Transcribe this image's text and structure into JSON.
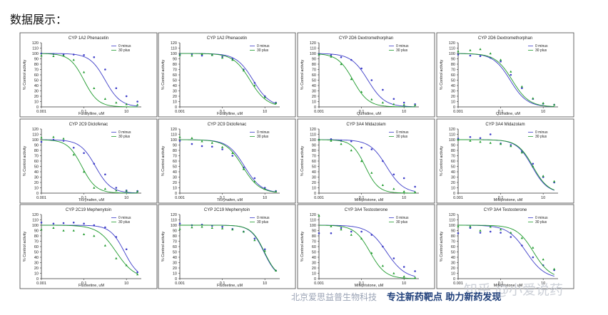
{
  "heading": "数据展示：",
  "footer": {
    "company": "北京爱思益普生物科技",
    "slogan": "专注新药靶点 助力新药发现"
  },
  "watermark": "知乎 @小爱说药",
  "colors": {
    "series_0min": "#3d3dc8",
    "series_30min": "#1e9a2c"
  },
  "chart_data": [
    {
      "type": "line",
      "title": "CYP 1A2 Phenacetin",
      "xlabel": "Furafylline, uM",
      "ylabel": "% Control activity",
      "xscale": "log",
      "xlim": [
        0.001,
        50
      ],
      "ylim": [
        0,
        120
      ],
      "xticks": [
        "0.001",
        "0.1",
        "10"
      ],
      "yticks": [
        "0",
        "10",
        "20",
        "30",
        "40",
        "50",
        "60",
        "70",
        "80",
        "90",
        "100",
        "110",
        "120"
      ],
      "legend": [
        "0 minus",
        "30 plus"
      ],
      "series": [
        {
          "name": "0 minus",
          "ic50": 1.0,
          "hill": 1.2,
          "x": [
            0.001,
            0.0037,
            0.011,
            0.033,
            0.1,
            0.3,
            1,
            3.3,
            10,
            33
          ],
          "y": [
            100,
            99,
            98,
            98,
            97,
            93,
            70,
            35,
            20,
            10
          ]
        },
        {
          "name": "30 plus",
          "ic50": 0.1,
          "hill": 1.3,
          "x": [
            0.001,
            0.0037,
            0.011,
            0.033,
            0.1,
            0.3,
            1,
            3.3,
            10,
            33
          ],
          "y": [
            96,
            95,
            96,
            88,
            65,
            35,
            15,
            8,
            5,
            4
          ]
        }
      ]
    },
    {
      "type": "line",
      "title": "CYP 1A2 Phenacetin",
      "xlabel": "Furafylline, uM",
      "ylabel": "% Control activity",
      "xscale": "log",
      "xlim": [
        0.001,
        50
      ],
      "ylim": [
        0,
        120
      ],
      "xticks": [
        "0.001",
        "0.1",
        "10"
      ],
      "yticks": [
        "0",
        "10",
        "20",
        "30",
        "40",
        "50",
        "60",
        "70",
        "80",
        "90",
        "100",
        "110",
        "120"
      ],
      "legend": [
        "0 minus",
        "30 plus"
      ],
      "series": [
        {
          "name": "0 minus",
          "ic50": 2.8,
          "hill": 1.1,
          "x": [
            0.001,
            0.0037,
            0.011,
            0.033,
            0.1,
            0.3,
            1,
            3.3,
            10,
            33
          ],
          "y": [
            98,
            99,
            96,
            97,
            94,
            90,
            70,
            45,
            20,
            8
          ]
        },
        {
          "name": "30 plus",
          "ic50": 2.0,
          "hill": 1.1,
          "x": [
            0.001,
            0.0037,
            0.011,
            0.033,
            0.1,
            0.3,
            1,
            3.3,
            10,
            33
          ],
          "y": [
            97,
            96,
            99,
            97,
            92,
            88,
            68,
            40,
            18,
            7
          ]
        }
      ]
    },
    {
      "type": "line",
      "title": "CYP 2D6 Dextromethorphan",
      "xlabel": "Quinidine, uM",
      "ylabel": "% Control activity",
      "xscale": "log",
      "xlim": [
        0.001,
        50
      ],
      "ylim": [
        0,
        120
      ],
      "xticks": [
        "0.001",
        "0.1",
        "10"
      ],
      "yticks": [
        "0",
        "10",
        "20",
        "30",
        "40",
        "50",
        "60",
        "70",
        "80",
        "90",
        "100",
        "110",
        "120"
      ],
      "legend": [
        "0 minus",
        "30 plus"
      ],
      "series": [
        {
          "name": "0 minus",
          "ic50": 0.2,
          "hill": 1.1,
          "x": [
            0.001,
            0.0037,
            0.011,
            0.033,
            0.1,
            0.3,
            1,
            3.3,
            10,
            33
          ],
          "y": [
            99,
            97,
            93,
            88,
            72,
            50,
            32,
            15,
            8,
            5
          ]
        },
        {
          "name": "30 plus",
          "ic50": 0.04,
          "hill": 1.2,
          "x": [
            0.001,
            0.0037,
            0.011,
            0.033,
            0.1,
            0.3,
            1,
            3.3,
            10,
            33
          ],
          "y": [
            98,
            94,
            80,
            52,
            28,
            14,
            8,
            5,
            4,
            3
          ]
        }
      ]
    },
    {
      "type": "line",
      "title": "CYP 2D6 Dextromethorphan",
      "xlabel": "Quinidine, uM",
      "ylabel": "% Control activity",
      "xscale": "log",
      "xlim": [
        0.001,
        50
      ],
      "ylim": [
        0,
        120
      ],
      "xticks": [
        "0.001",
        "0.1",
        "10"
      ],
      "yticks": [
        "0",
        "10",
        "20",
        "30",
        "40",
        "50",
        "60",
        "70",
        "80",
        "90",
        "100",
        "110",
        "120"
      ],
      "legend": [
        "0 minus",
        "30 plus"
      ],
      "series": [
        {
          "name": "0 minus",
          "ic50": 0.28,
          "hill": 1.1,
          "x": [
            0.001,
            0.0037,
            0.011,
            0.033,
            0.1,
            0.3,
            1,
            3.3,
            10,
            33
          ],
          "y": [
            98,
            96,
            95,
            92,
            85,
            60,
            35,
            15,
            6,
            4
          ]
        },
        {
          "name": "30 plus",
          "ic50": 0.35,
          "hill": 1.1,
          "x": [
            0.001,
            0.0037,
            0.011,
            0.033,
            0.1,
            0.3,
            1,
            3.3,
            10,
            33
          ],
          "y": [
            104,
            106,
            108,
            100,
            88,
            66,
            38,
            16,
            7,
            4
          ]
        }
      ]
    },
    {
      "type": "line",
      "title": "CYP 2C9 Diclofenac",
      "xlabel": "Ticrynafen, uM",
      "ylabel": "% Control activity",
      "xscale": "log",
      "xlim": [
        0.001,
        50
      ],
      "ylim": [
        0,
        120
      ],
      "xticks": [
        "0.001",
        "0.1",
        "10"
      ],
      "yticks": [
        "0",
        "10",
        "20",
        "30",
        "40",
        "50",
        "60",
        "70",
        "80",
        "90",
        "100",
        "110",
        "120"
      ],
      "legend": [
        "0 minus",
        "30 plus"
      ],
      "series": [
        {
          "name": "0 minus",
          "ic50": 0.35,
          "hill": 1.2,
          "x": [
            0.001,
            0.0037,
            0.011,
            0.033,
            0.1,
            0.3,
            1,
            3.3,
            10,
            33
          ],
          "y": [
            96,
            100,
            98,
            85,
            75,
            55,
            35,
            10,
            5,
            4
          ]
        },
        {
          "name": "30 plus",
          "ic50": 0.08,
          "hill": 1.3,
          "x": [
            0.001,
            0.0037,
            0.011,
            0.033,
            0.1,
            0.3,
            1,
            3.3,
            10,
            33
          ],
          "y": [
            104,
            105,
            102,
            72,
            40,
            10,
            8,
            5,
            4,
            3
          ]
        }
      ]
    },
    {
      "type": "line",
      "title": "CYP 2C9 Diclofenac",
      "xlabel": "Ticrynafen, uM",
      "ylabel": "% Control activity",
      "xscale": "log",
      "xlim": [
        0.001,
        50
      ],
      "ylim": [
        0,
        120
      ],
      "xticks": [
        "0.001",
        "0.1",
        "10"
      ],
      "yticks": [
        "0",
        "10",
        "20",
        "30",
        "40",
        "50",
        "60",
        "70",
        "80",
        "90",
        "100",
        "110",
        "120"
      ],
      "legend": [
        "0 minus",
        "30 plus"
      ],
      "series": [
        {
          "name": "0 minus",
          "ic50": 1.1,
          "hill": 1.1,
          "x": [
            0.001,
            0.0037,
            0.011,
            0.033,
            0.1,
            0.3,
            1,
            3.3,
            10,
            33
          ],
          "y": [
            98,
            92,
            88,
            87,
            82,
            70,
            48,
            28,
            10,
            4
          ]
        },
        {
          "name": "30 plus",
          "ic50": 0.9,
          "hill": 1.1,
          "x": [
            0.001,
            0.0037,
            0.011,
            0.033,
            0.1,
            0.3,
            1,
            3.3,
            10,
            33
          ],
          "y": [
            105,
            103,
            97,
            94,
            86,
            75,
            45,
            22,
            8,
            3
          ]
        }
      ]
    },
    {
      "type": "line",
      "title": "CYP 3A4 Midazolam",
      "xlabel": "Mifepristone, uM",
      "ylabel": "% Control activity",
      "xscale": "log",
      "xlim": [
        0.001,
        50
      ],
      "ylim": [
        0,
        120
      ],
      "xticks": [
        "0.001",
        "0.1",
        "10"
      ],
      "yticks": [
        "0",
        "10",
        "20",
        "30",
        "40",
        "50",
        "60",
        "70",
        "80",
        "90",
        "100",
        "110",
        "120"
      ],
      "legend": [
        "0 minus",
        "30 plus"
      ],
      "series": [
        {
          "name": "0 minus",
          "ic50": 1.5,
          "hill": 1.1,
          "x": [
            0.001,
            0.0037,
            0.011,
            0.033,
            0.1,
            0.3,
            1,
            3.3,
            10,
            33
          ],
          "y": [
            100,
            101,
            98,
            97,
            85,
            82,
            60,
            35,
            28,
            12
          ]
        },
        {
          "name": "30 plus",
          "ic50": 0.15,
          "hill": 1.4,
          "x": [
            0.001,
            0.0037,
            0.011,
            0.033,
            0.1,
            0.3,
            1,
            3.3,
            10,
            33
          ],
          "y": [
            100,
            98,
            92,
            80,
            60,
            38,
            15,
            8,
            3,
            2
          ]
        }
      ]
    },
    {
      "type": "line",
      "title": "CYP 3A4 Midazolam",
      "xlabel": "Mifepristone, uM",
      "ylabel": "% Control activity",
      "xscale": "log",
      "xlim": [
        0.001,
        50
      ],
      "ylim": [
        0,
        120
      ],
      "xticks": [
        "0.001",
        "0.1",
        "10"
      ],
      "yticks": [
        "0",
        "10",
        "20",
        "30",
        "40",
        "50",
        "60",
        "70",
        "80",
        "90",
        "100",
        "110",
        "120"
      ],
      "legend": [
        "0 minus",
        "30 plus"
      ],
      "series": [
        {
          "name": "0 minus",
          "ic50": 3.0,
          "hill": 1.2,
          "x": [
            0.001,
            0.0037,
            0.011,
            0.033,
            0.1,
            0.3,
            1,
            3.3,
            10,
            33
          ],
          "y": [
            102,
            105,
            103,
            110,
            93,
            90,
            78,
            55,
            30,
            20
          ]
        },
        {
          "name": "30 plus",
          "ic50": 3.3,
          "hill": 1.2,
          "x": [
            0.001,
            0.0037,
            0.011,
            0.033,
            0.1,
            0.3,
            1,
            3.3,
            10,
            33
          ],
          "y": [
            100,
            98,
            96,
            94,
            92,
            88,
            76,
            50,
            32,
            22
          ]
        }
      ]
    },
    {
      "type": "line",
      "title": "CYP 2C19 Mephenytoin",
      "xlabel": "Fluoxetine, uM",
      "ylabel": "% Control activity",
      "xscale": "log",
      "xlim": [
        0.001,
        50
      ],
      "ylim": [
        0,
        120
      ],
      "xticks": [
        "0.001",
        "0.1",
        "10"
      ],
      "yticks": [
        "0",
        "10",
        "20",
        "30",
        "40",
        "50",
        "60",
        "70",
        "80",
        "90",
        "100",
        "110",
        "120"
      ],
      "legend": [
        "0 minus",
        "30 plus"
      ],
      "series": [
        {
          "name": "0 minus",
          "ic50": 8.0,
          "hill": 1.3,
          "x": [
            0.001,
            0.0037,
            0.011,
            0.033,
            0.1,
            0.3,
            1,
            3.3,
            10,
            33
          ],
          "y": [
            105,
            103,
            104,
            105,
            103,
            100,
            96,
            78,
            55,
            12
          ]
        },
        {
          "name": "30 plus",
          "ic50": 3.3,
          "hill": 1.0,
          "x": [
            0.001,
            0.0037,
            0.011,
            0.033,
            0.1,
            0.3,
            1,
            3.3,
            10,
            33
          ],
          "y": [
            92,
            95,
            90,
            90,
            83,
            80,
            62,
            38,
            25,
            8
          ]
        }
      ]
    },
    {
      "type": "line",
      "title": "CYP 2C19 Mephenytoin",
      "xlabel": "Fluoxetine, uM",
      "ylabel": "% Control activity",
      "xscale": "log",
      "xlim": [
        0.001,
        50
      ],
      "ylim": [
        0,
        120
      ],
      "xticks": [
        "0.001",
        "0.1",
        "10"
      ],
      "yticks": [
        "0",
        "10",
        "20",
        "30",
        "40",
        "50",
        "60",
        "70",
        "80",
        "90",
        "100",
        "110",
        "120"
      ],
      "legend": [
        "0 minus",
        "30 plus"
      ],
      "series": [
        {
          "name": "0 minus",
          "ic50": 9.0,
          "hill": 1.4,
          "x": [
            0.001,
            0.0037,
            0.011,
            0.033,
            0.1,
            0.3,
            1,
            3.3,
            10,
            33
          ],
          "y": [
            103,
            100,
            101,
            99,
            97,
            93,
            88,
            75,
            55,
            15
          ]
        },
        {
          "name": "30 plus",
          "ic50": 9.5,
          "hill": 1.4,
          "x": [
            0.001,
            0.0037,
            0.011,
            0.033,
            0.1,
            0.3,
            1,
            3.3,
            10,
            33
          ],
          "y": [
            93,
            96,
            97,
            95,
            94,
            92,
            88,
            72,
            52,
            15
          ]
        }
      ]
    },
    {
      "type": "line",
      "title": "CYP 3A4 Testosterone",
      "xlabel": "Mifepristone, uM",
      "ylabel": "% Control activity",
      "xscale": "log",
      "xlim": [
        0.001,
        50
      ],
      "ylim": [
        0,
        120
      ],
      "xticks": [
        "0.001",
        "0.1",
        "10"
      ],
      "yticks": [
        "0",
        "10",
        "20",
        "30",
        "40",
        "50",
        "60",
        "70",
        "80",
        "90",
        "100",
        "110",
        "120"
      ],
      "legend": [
        "0 minus",
        "30 plus"
      ],
      "series": [
        {
          "name": "0 minus",
          "ic50": 1.5,
          "hill": 1.0,
          "x": [
            0.001,
            0.0037,
            0.011,
            0.033,
            0.1,
            0.3,
            1,
            3.3,
            10,
            33
          ],
          "y": [
            85,
            85,
            95,
            88,
            88,
            82,
            60,
            38,
            22,
            14
          ]
        },
        {
          "name": "30 plus",
          "ic50": 0.25,
          "hill": 1.2,
          "x": [
            0.001,
            0.0037,
            0.011,
            0.033,
            0.1,
            0.3,
            1,
            3.3,
            10,
            33
          ],
          "y": [
            118,
            98,
            92,
            82,
            75,
            48,
            24,
            10,
            4,
            2
          ]
        }
      ]
    },
    {
      "type": "line",
      "title": "CYP 3A4 Testosterone",
      "xlabel": "Mifepristone, uM",
      "ylabel": "% Control activity",
      "xscale": "log",
      "xlim": [
        0.001,
        50
      ],
      "ylim": [
        0,
        120
      ],
      "xticks": [
        "0.001",
        "0.1",
        "10"
      ],
      "yticks": [
        "0",
        "10",
        "20",
        "30",
        "40",
        "50",
        "60",
        "70",
        "80",
        "90",
        "100",
        "110",
        "120"
      ],
      "legend": [
        "0 minus",
        "30 plus"
      ],
      "series": [
        {
          "name": "0 minus",
          "ic50": 1.6,
          "hill": 1.0,
          "x": [
            0.001,
            0.0037,
            0.011,
            0.033,
            0.1,
            0.3,
            1,
            3.3,
            10,
            33
          ],
          "y": [
            85,
            95,
            86,
            88,
            86,
            78,
            62,
            40,
            25,
            16
          ]
        },
        {
          "name": "30 plus",
          "ic50": 3.5,
          "hill": 1.1,
          "x": [
            0.001,
            0.0037,
            0.011,
            0.033,
            0.1,
            0.3,
            1,
            3.3,
            10,
            33
          ],
          "y": [
            98,
            98,
            90,
            97,
            92,
            86,
            76,
            58,
            36,
            18
          ]
        }
      ]
    }
  ]
}
